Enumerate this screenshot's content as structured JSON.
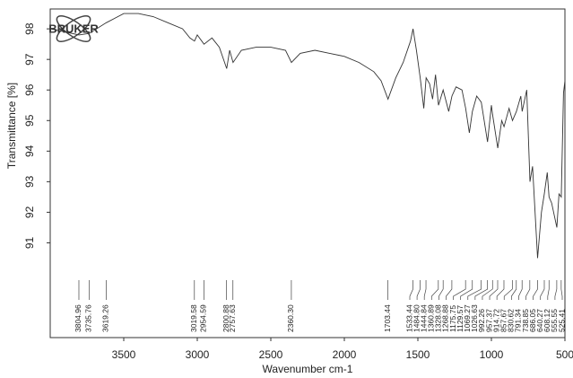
{
  "chart_data": {
    "type": "line",
    "logo": "BRUKER",
    "xlabel": "Wavenumber cm-1",
    "ylabel": "Transmittance [%]",
    "color": "#333333",
    "xlim": [
      4000,
      500
    ],
    "ylim": [
      87.9,
      98.65
    ],
    "xticks": [
      3500,
      3000,
      2500,
      2000,
      1500,
      1000,
      500
    ],
    "yticks": [
      91,
      92,
      93,
      94,
      95,
      96,
      97,
      98
    ],
    "x": [
      4000,
      3900,
      3804,
      3735,
      3619,
      3500,
      3400,
      3300,
      3200,
      3100,
      3050,
      3019,
      3000,
      2954,
      2900,
      2850,
      2800,
      2780,
      2757,
      2700,
      2600,
      2500,
      2400,
      2360,
      2300,
      2200,
      2100,
      2000,
      1900,
      1800,
      1750,
      1703,
      1650,
      1600,
      1550,
      1533,
      1510,
      1484,
      1460,
      1444,
      1420,
      1400,
      1380,
      1360,
      1328,
      1290,
      1268,
      1240,
      1200,
      1175,
      1150,
      1129,
      1100,
      1069,
      1026,
      1000,
      992,
      957,
      930,
      914,
      880,
      857,
      830,
      800,
      791,
      760,
      738,
      720,
      686,
      660,
      640,
      620,
      608,
      590,
      555,
      540,
      525,
      510,
      500
    ],
    "values": [
      98.0,
      97.9,
      97.8,
      97.85,
      98.2,
      98.5,
      98.5,
      98.4,
      98.2,
      98.0,
      97.7,
      97.6,
      97.8,
      97.5,
      97.7,
      97.4,
      96.7,
      97.3,
      96.9,
      97.3,
      97.4,
      97.4,
      97.3,
      96.9,
      97.2,
      97.3,
      97.2,
      97.1,
      96.9,
      96.6,
      96.3,
      95.7,
      96.4,
      96.9,
      97.6,
      98.0,
      97.3,
      96.4,
      95.4,
      96.4,
      96.2,
      95.7,
      96.5,
      95.5,
      96.0,
      95.3,
      95.8,
      96.1,
      96.0,
      95.4,
      94.6,
      95.3,
      95.8,
      95.6,
      94.3,
      95.5,
      95.2,
      94.1,
      95.0,
      94.8,
      95.4,
      95.0,
      95.3,
      95.8,
      95.3,
      96.0,
      93.0,
      93.5,
      90.5,
      92.0,
      92.6,
      93.3,
      92.5,
      92.3,
      91.5,
      92.6,
      92.5,
      95.9,
      96.3
    ],
    "peaks": [
      3804.96,
      3735.76,
      3619.26,
      3019.58,
      2954.59,
      2800.88,
      2757.63,
      {
        "value": 2360.3,
        "label": "2360.30"
      },
      1703.44,
      1533.44,
      {
        "value": 1484.8,
        "label": "1484.80"
      },
      1444.84,
      1360.89,
      1328.08,
      1268.88,
      1175.75,
      1129.57,
      1069.27,
      1026.63,
      992.26,
      957.37,
      914.72,
      857.67,
      830.62,
      791.34,
      738.85,
      686.05,
      640.27,
      608.12,
      555.55,
      525.41
    ]
  }
}
